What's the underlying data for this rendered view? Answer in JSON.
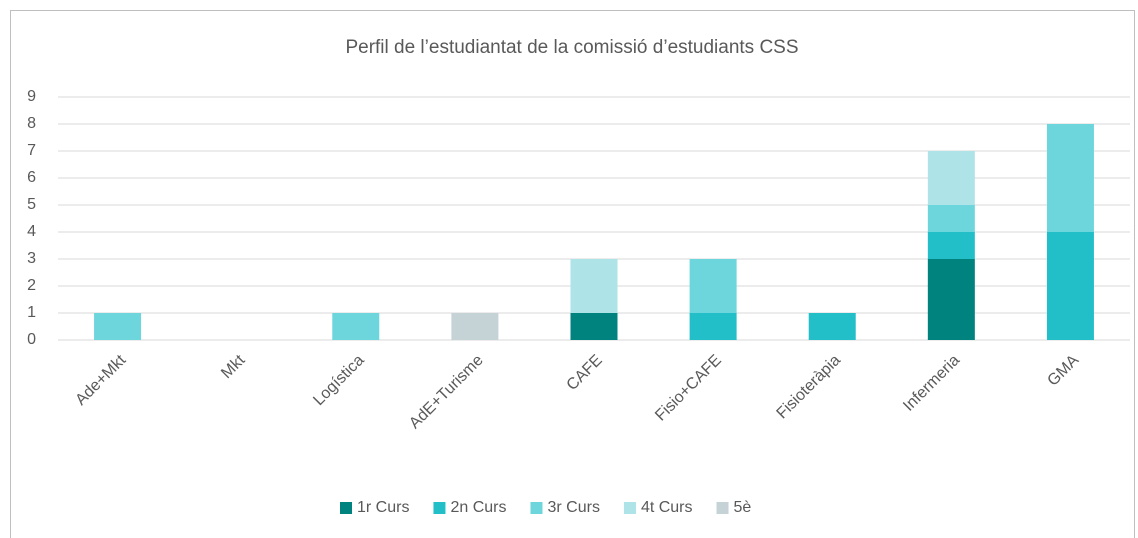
{
  "chart_data": {
    "type": "stacked_bar",
    "title": "Perfil de l’estudiantat de la comissió d’estudiants CSS",
    "categories": [
      "Ade+Mkt",
      "Mkt",
      "Logística",
      "AdE+Turisme",
      "CAFE",
      "Fisio+CAFE",
      "Fisioteràpia",
      "Infermeria",
      "GMA"
    ],
    "series": [
      {
        "name": "1r Curs",
        "color": "#00827f",
        "values": [
          0,
          0,
          0,
          0,
          1,
          0,
          0,
          3,
          0
        ]
      },
      {
        "name": "2n Curs",
        "color": "#22bfc9",
        "values": [
          0,
          0,
          0,
          0,
          0,
          1,
          1,
          1,
          4
        ]
      },
      {
        "name": "3r Curs",
        "color": "#6dd6dc",
        "values": [
          1,
          0,
          1,
          0,
          0,
          2,
          0,
          1,
          4
        ]
      },
      {
        "name": "4t Curs",
        "color": "#aee3e8",
        "values": [
          0,
          0,
          0,
          0,
          2,
          0,
          0,
          2,
          0
        ]
      },
      {
        "name": "5è",
        "color": "#c5d3d6",
        "values": [
          0,
          0,
          0,
          1,
          0,
          0,
          0,
          0,
          0
        ]
      }
    ],
    "ylim": [
      0,
      9
    ],
    "yticks": [
      0,
      1,
      2,
      3,
      4,
      5,
      6,
      7,
      8,
      9
    ],
    "grid": true,
    "legend": "bottom"
  }
}
